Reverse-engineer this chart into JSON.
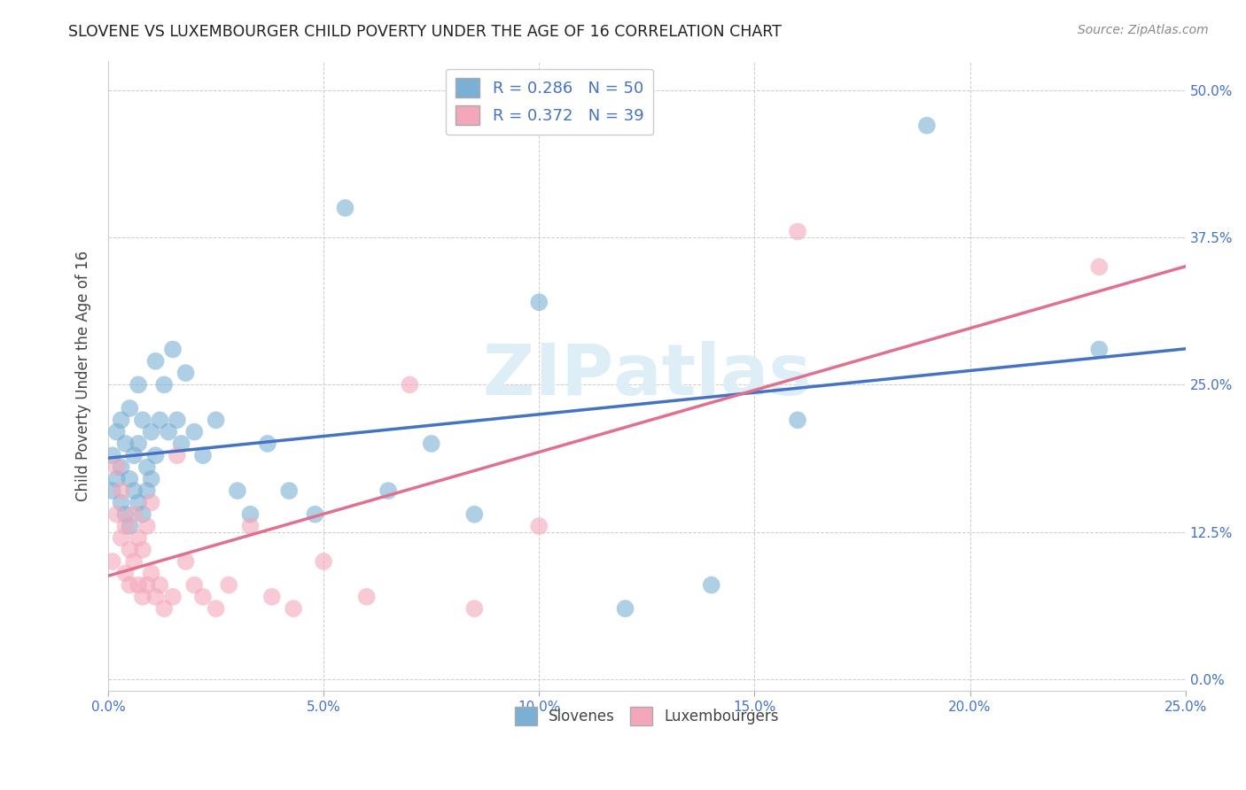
{
  "title": "SLOVENE VS LUXEMBOURGER CHILD POVERTY UNDER THE AGE OF 16 CORRELATION CHART",
  "source": "Source: ZipAtlas.com",
  "ylabel": "Child Poverty Under the Age of 16",
  "xlim": [
    0.0,
    0.25
  ],
  "ylim": [
    -0.01,
    0.525
  ],
  "slovene_color": "#7bafd4",
  "luxembourger_color": "#f4a7b9",
  "slovene_R": 0.286,
  "slovene_N": 50,
  "luxembourger_R": 0.372,
  "luxembourger_N": 39,
  "legend_R_color": "#4472c4",
  "line_blue": "#4472c4",
  "line_pink": "#e07090",
  "background_color": "#ffffff",
  "grid_color": "#cccccc",
  "slovene_x": [
    0.001,
    0.001,
    0.002,
    0.002,
    0.003,
    0.003,
    0.003,
    0.004,
    0.004,
    0.005,
    0.005,
    0.005,
    0.006,
    0.006,
    0.007,
    0.007,
    0.007,
    0.008,
    0.008,
    0.009,
    0.009,
    0.01,
    0.01,
    0.011,
    0.011,
    0.012,
    0.013,
    0.014,
    0.015,
    0.016,
    0.017,
    0.018,
    0.02,
    0.022,
    0.025,
    0.03,
    0.033,
    0.037,
    0.042,
    0.048,
    0.055,
    0.065,
    0.075,
    0.085,
    0.1,
    0.12,
    0.14,
    0.16,
    0.19,
    0.23
  ],
  "slovene_y": [
    0.16,
    0.19,
    0.17,
    0.21,
    0.15,
    0.18,
    0.22,
    0.14,
    0.2,
    0.13,
    0.17,
    0.23,
    0.16,
    0.19,
    0.15,
    0.2,
    0.25,
    0.14,
    0.22,
    0.16,
    0.18,
    0.17,
    0.21,
    0.19,
    0.27,
    0.22,
    0.25,
    0.21,
    0.28,
    0.22,
    0.2,
    0.26,
    0.21,
    0.19,
    0.22,
    0.16,
    0.14,
    0.2,
    0.16,
    0.14,
    0.4,
    0.16,
    0.2,
    0.14,
    0.32,
    0.06,
    0.08,
    0.22,
    0.47,
    0.28
  ],
  "luxembourger_x": [
    0.001,
    0.002,
    0.002,
    0.003,
    0.003,
    0.004,
    0.004,
    0.005,
    0.005,
    0.006,
    0.006,
    0.007,
    0.007,
    0.008,
    0.008,
    0.009,
    0.009,
    0.01,
    0.01,
    0.011,
    0.012,
    0.013,
    0.015,
    0.016,
    0.018,
    0.02,
    0.022,
    0.025,
    0.028,
    0.033,
    0.038,
    0.043,
    0.05,
    0.06,
    0.07,
    0.085,
    0.1,
    0.16,
    0.23
  ],
  "luxembourger_y": [
    0.1,
    0.14,
    0.18,
    0.12,
    0.16,
    0.09,
    0.13,
    0.08,
    0.11,
    0.1,
    0.14,
    0.08,
    0.12,
    0.07,
    0.11,
    0.08,
    0.13,
    0.09,
    0.15,
    0.07,
    0.08,
    0.06,
    0.07,
    0.19,
    0.1,
    0.08,
    0.07,
    0.06,
    0.08,
    0.13,
    0.07,
    0.06,
    0.1,
    0.07,
    0.25,
    0.06,
    0.13,
    0.38,
    0.35
  ],
  "x_tick_vals": [
    0.0,
    0.05,
    0.1,
    0.15,
    0.2,
    0.25
  ],
  "x_tick_labels": [
    "0.0%",
    "5.0%",
    "10.0%",
    "15.0%",
    "20.0%",
    "25.0%"
  ],
  "y_tick_vals": [
    0.0,
    0.125,
    0.25,
    0.375,
    0.5
  ],
  "y_tick_labels": [
    "0.0%",
    "12.5%",
    "25.0%",
    "37.5%",
    "50.0%"
  ]
}
